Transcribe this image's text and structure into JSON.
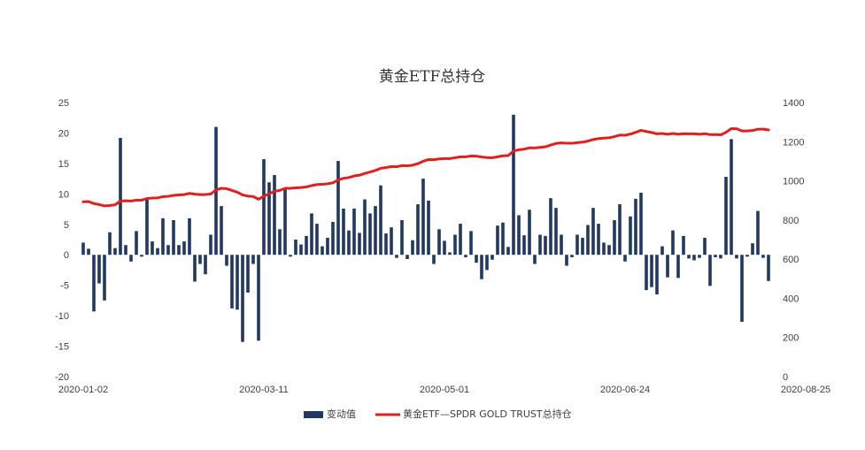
{
  "chart_data": {
    "type": "bar+line",
    "title": "黄金ETF总持仓",
    "x_tick_labels": [
      "2020-01-02",
      "2020-03-11",
      "2020-05-01",
      "2020-06-24",
      "2020-08-25"
    ],
    "y_left": {
      "ticks": [
        "25",
        "20",
        "15",
        "10",
        "5",
        "0",
        "-5",
        "-10",
        "-15",
        "-20"
      ],
      "ylim": [
        -20,
        25
      ]
    },
    "y_right": {
      "ticks": [
        "1400",
        "1200",
        "1000",
        "800",
        "600",
        "400",
        "200",
        "0"
      ],
      "ylim": [
        0,
        1400
      ]
    },
    "grid": false,
    "legend_position": "bottom",
    "series": [
      {
        "name": "变动值",
        "kind": "bar",
        "axis": "left",
        "color": "#1f3864",
        "values": [
          2,
          1,
          -9.3,
          -4.7,
          -7.5,
          3.7,
          1.1,
          19.2,
          1.6,
          -1.1,
          3.9,
          -0.3,
          9.2,
          2.2,
          1.1,
          6,
          1.6,
          5.7,
          1.6,
          2.2,
          6,
          -4.4,
          -1.5,
          -3.2,
          3.3,
          21,
          8,
          -1.8,
          -8.8,
          -9,
          -14.3,
          -6.2,
          -1.5,
          -14.1,
          15.7,
          11.9,
          13.1,
          4.2,
          10.9,
          -0.3,
          2.5,
          1.7,
          3.1,
          6.8,
          5.1,
          1.4,
          2.8,
          5.4,
          15.4,
          7.6,
          4,
          7.6,
          3.6,
          9.1,
          6.8,
          8,
          11.4,
          3.5,
          4.5,
          -0.5,
          5.7,
          -0.7,
          2.4,
          8.3,
          12.5,
          8.9,
          -1.5,
          4.2,
          2.3,
          0.4,
          3.3,
          5.1,
          -0.4,
          3.9,
          -1.3,
          -4,
          -2.5,
          -0.8,
          4.8,
          5.3,
          1.3,
          23,
          6.5,
          3.2,
          7.4,
          -1.5,
          3.3,
          3.1,
          9.3,
          7.7,
          3.3,
          -1.8,
          -0.4,
          3.3,
          2.8,
          4.9,
          7.7,
          5.1,
          2,
          1.6,
          5.7,
          8.3,
          -1.1,
          6.3,
          9.2,
          10.2,
          -5.8,
          -5.3,
          -6.5,
          1.4,
          -3.7,
          4,
          -3.8,
          3.1,
          -0.6,
          -0.9,
          -0.5,
          2.8,
          -5.1,
          -0.4,
          -0.6,
          12.8,
          19,
          -0.6,
          -11,
          -0.3,
          1.9,
          7.2,
          -0.5,
          -4.3
        ]
      },
      {
        "name": "黄金ETF—SPDR GOLD TRUST总持仓",
        "kind": "line",
        "axis": "right",
        "color": "#e01f1f",
        "values": [
          893,
          894,
          884,
          879,
          872,
          874,
          878,
          897,
          898,
          897,
          901,
          901,
          910,
          912,
          913,
          919,
          921,
          926,
          928,
          930,
          936,
          932,
          930,
          930,
          933,
          954,
          962,
          960,
          951,
          942,
          928,
          922,
          920,
          906,
          922,
          934,
          947,
          951,
          962,
          962,
          964,
          966,
          969,
          976,
          981,
          982,
          985,
          990,
          1005,
          1013,
          1017,
          1025,
          1029,
          1038,
          1045,
          1053,
          1064,
          1068,
          1073,
          1072,
          1078,
          1077,
          1080,
          1088,
          1100,
          1109,
          1108,
          1112,
          1114,
          1114,
          1118,
          1123,
          1123,
          1127,
          1126,
          1122,
          1119,
          1118,
          1123,
          1128,
          1129,
          1152,
          1159,
          1162,
          1169,
          1168,
          1171,
          1174,
          1183,
          1191,
          1194,
          1192,
          1192,
          1195,
          1198,
          1203,
          1211,
          1216,
          1218,
          1220,
          1226,
          1234,
          1233,
          1239,
          1248,
          1258,
          1252,
          1247,
          1240,
          1242,
          1238,
          1242,
          1238,
          1241,
          1240,
          1240,
          1238,
          1241,
          1236,
          1236,
          1235,
          1248,
          1267,
          1266,
          1255,
          1255,
          1257,
          1264,
          1264,
          1260
        ]
      }
    ]
  }
}
